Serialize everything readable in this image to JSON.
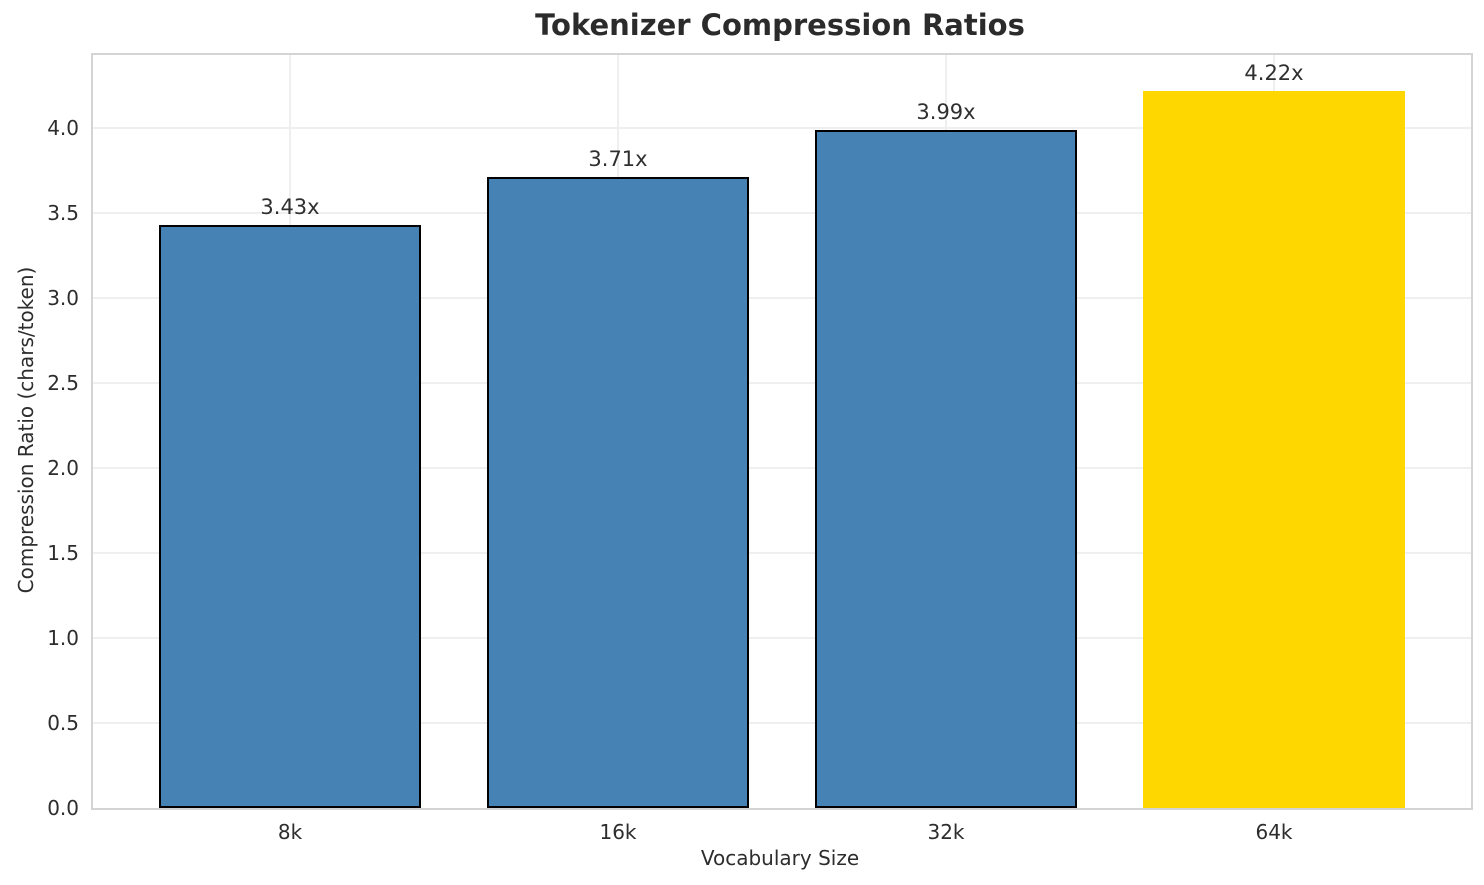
{
  "chart_data": {
    "type": "bar",
    "title": "Tokenizer Compression Ratios",
    "xlabel": "Vocabulary Size",
    "ylabel": "Compression Ratio (chars/token)",
    "categories": [
      "8k",
      "16k",
      "32k",
      "64k"
    ],
    "values": [
      3.43,
      3.71,
      3.99,
      4.22
    ],
    "bar_labels": [
      "3.43x",
      "3.71x",
      "3.99x",
      "4.22x"
    ],
    "bar_colors": [
      "#4682b4",
      "#4682b4",
      "#4682b4",
      "#ffd700"
    ],
    "bar_edge_colors": [
      "#000000",
      "#000000",
      "#000000",
      "none"
    ],
    "base_bar_color": "#4682b4",
    "highlight_bar_color": "#ffd700",
    "ylim": [
      0,
      4.43
    ],
    "ytick_values": [
      0.0,
      0.5,
      1.0,
      1.5,
      2.0,
      2.5,
      3.0,
      3.5,
      4.0
    ],
    "ytick_labels": [
      "0.0",
      "0.5",
      "1.0",
      "1.5",
      "2.0",
      "2.5",
      "3.0",
      "3.5",
      "4.0"
    ],
    "grid": true,
    "legend_position": "none"
  }
}
